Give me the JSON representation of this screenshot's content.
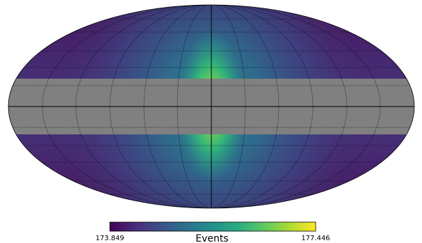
{
  "map": {
    "projection": "mollweide",
    "masked_band_color": "#808080",
    "grid": true,
    "graticule_style": "dotted"
  },
  "colorbar": {
    "min_label": "173.849",
    "max_label": "177.446",
    "title": "Events",
    "colormap": "viridis",
    "colors": [
      "#440154",
      "#472d7b",
      "#3b528b",
      "#2c728e",
      "#21918c",
      "#28ae80",
      "#5ec962",
      "#addc30",
      "#fde725"
    ]
  }
}
